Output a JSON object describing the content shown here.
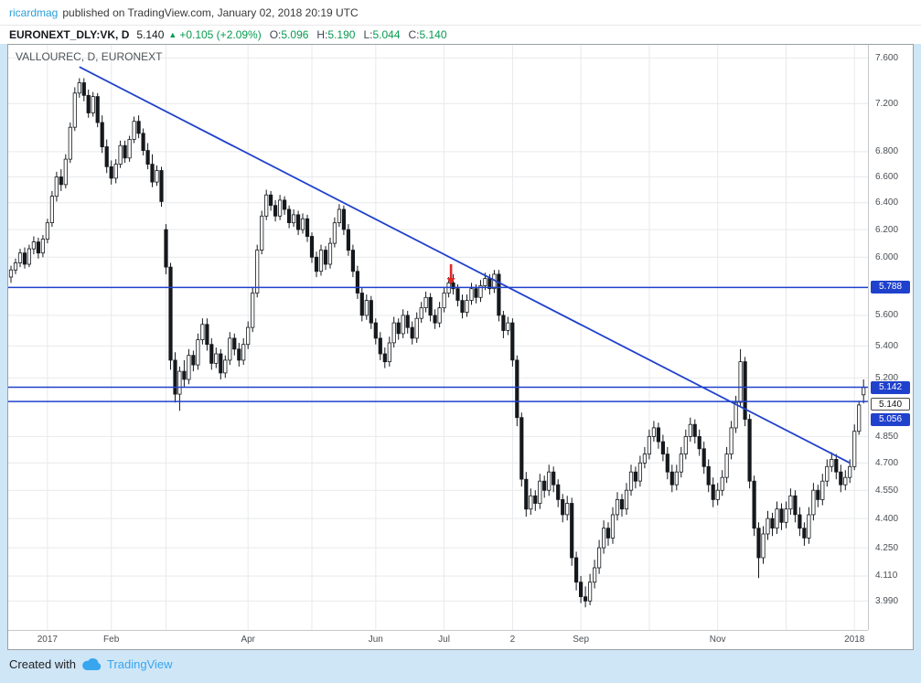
{
  "page": {
    "background": "#cfe6f7"
  },
  "header": {
    "author": "ricardmag",
    "published_text": "published on TradingView.com, January 02, 2018 20:19 UTC"
  },
  "symbol_bar": {
    "symbol": "EURONEXT_DLY:VK, D",
    "last_price": "5.140",
    "direction_icon": "▲",
    "change_text": "+0.105 (+2.09%)",
    "ohlc": [
      {
        "label": "O:",
        "value": "5.096"
      },
      {
        "label": "H:",
        "value": "5.190"
      },
      {
        "label": "L:",
        "value": "5.044"
      },
      {
        "label": "C:",
        "value": "5.140"
      }
    ]
  },
  "footer": {
    "created_with": "Created with",
    "brand": "TradingView"
  },
  "colors": {
    "drawing_blue": "#2041cc",
    "up_green": "#089950",
    "link_blue": "#2b9fd8",
    "brand_blue": "#37a6ef",
    "arrow_red": "#e12727",
    "grid": "#e7e9ec",
    "candle": "#15181c",
    "candle_up_fill": "#ffffff",
    "page_bg": "#cfe6f7"
  },
  "chart_data": {
    "type": "candlestick",
    "title": "VALLOUREC, D, EURONEXT",
    "scale": "log",
    "price_range": {
      "top": 7.72,
      "bottom": 3.855
    },
    "y_ticks": [
      7.6,
      7.2,
      6.8,
      6.6,
      6.4,
      6.2,
      6.0,
      5.6,
      5.4,
      5.2,
      4.85,
      4.7,
      4.55,
      4.4,
      4.25,
      4.11,
      3.99
    ],
    "x_labels": [
      {
        "index": 8,
        "label": "2017"
      },
      {
        "index": 22,
        "label": "Feb"
      },
      {
        "index": 52,
        "label": "Apr"
      },
      {
        "index": 80,
        "label": "Jun"
      },
      {
        "index": 95,
        "label": "Jul"
      },
      {
        "index": 110,
        "label": "2"
      },
      {
        "index": 125,
        "label": "Sep"
      },
      {
        "index": 155,
        "label": "Nov"
      },
      {
        "index": 185,
        "label": "2018"
      }
    ],
    "month_gridlines": [
      8,
      22,
      34,
      52,
      66,
      80,
      95,
      110,
      125,
      140,
      155,
      170,
      185
    ],
    "horizontal_lines": [
      {
        "price": 5.788,
        "label": "5.788"
      },
      {
        "price": 5.142,
        "label": "5.142"
      },
      {
        "price": 5.056,
        "label": "5.056"
      }
    ],
    "price_badges": [
      {
        "label": "5.788",
        "price": 5.788,
        "style": "blue",
        "offset": 0
      },
      {
        "label": "5.142",
        "price": 5.142,
        "style": "blue",
        "offset": 0
      },
      {
        "label": "5.140",
        "price": 5.14,
        "style": "white",
        "offset": 18
      },
      {
        "label": "5.056",
        "price": 5.056,
        "style": "blue",
        "offset": 20
      }
    ],
    "trendline": {
      "from": {
        "index": 15,
        "price": 7.52
      },
      "to": {
        "index": 184,
        "price": 4.7
      }
    },
    "arrow_annotation": {
      "index": 96.5,
      "from_price": 5.95,
      "to_price": 5.81,
      "color": "#e12727"
    },
    "candles": [
      [
        5.86,
        5.94,
        5.82,
        5.91
      ],
      [
        5.91,
        5.99,
        5.88,
        5.96
      ],
      [
        5.96,
        6.06,
        5.93,
        6.03
      ],
      [
        6.03,
        6.07,
        5.92,
        5.95
      ],
      [
        5.95,
        6.09,
        5.93,
        6.06
      ],
      [
        6.06,
        6.15,
        6.02,
        6.11
      ],
      [
        6.11,
        6.14,
        5.99,
        6.03
      ],
      [
        6.03,
        6.16,
        6.0,
        6.13
      ],
      [
        6.13,
        6.28,
        6.1,
        6.25
      ],
      [
        6.25,
        6.49,
        6.22,
        6.45
      ],
      [
        6.45,
        6.64,
        6.41,
        6.6
      ],
      [
        6.6,
        6.66,
        6.49,
        6.54
      ],
      [
        6.54,
        6.78,
        6.51,
        6.74
      ],
      [
        6.74,
        7.04,
        6.71,
        7.0
      ],
      [
        7.0,
        7.34,
        6.97,
        7.29
      ],
      [
        7.29,
        7.42,
        7.25,
        7.38
      ],
      [
        7.38,
        7.42,
        7.22,
        7.27
      ],
      [
        7.27,
        7.32,
        7.08,
        7.12
      ],
      [
        7.12,
        7.3,
        7.09,
        7.26
      ],
      [
        7.26,
        7.29,
        7.0,
        7.04
      ],
      [
        7.04,
        7.1,
        6.79,
        6.84
      ],
      [
        6.84,
        6.9,
        6.63,
        6.68
      ],
      [
        6.68,
        6.73,
        6.54,
        6.59
      ],
      [
        6.59,
        6.74,
        6.55,
        6.7
      ],
      [
        6.7,
        6.89,
        6.67,
        6.85
      ],
      [
        6.85,
        6.89,
        6.71,
        6.75
      ],
      [
        6.75,
        6.93,
        6.72,
        6.9
      ],
      [
        6.9,
        7.09,
        6.87,
        7.05
      ],
      [
        7.05,
        7.1,
        6.91,
        6.95
      ],
      [
        6.95,
        6.99,
        6.77,
        6.81
      ],
      [
        6.81,
        6.87,
        6.66,
        6.7
      ],
      [
        6.7,
        6.78,
        6.52,
        6.56
      ],
      [
        6.56,
        6.69,
        6.53,
        6.65
      ],
      [
        6.65,
        6.68,
        6.37,
        6.41
      ],
      [
        6.2,
        6.24,
        5.88,
        5.93
      ],
      [
        5.93,
        5.96,
        5.25,
        5.31
      ],
      [
        5.31,
        5.36,
        5.05,
        5.1
      ],
      [
        5.1,
        5.27,
        5.0,
        5.24
      ],
      [
        5.24,
        5.31,
        5.14,
        5.19
      ],
      [
        5.19,
        5.38,
        5.16,
        5.34
      ],
      [
        5.34,
        5.37,
        5.24,
        5.28
      ],
      [
        5.28,
        5.48,
        5.25,
        5.44
      ],
      [
        5.44,
        5.58,
        5.41,
        5.54
      ],
      [
        5.54,
        5.58,
        5.37,
        5.41
      ],
      [
        5.41,
        5.45,
        5.25,
        5.29
      ],
      [
        5.29,
        5.39,
        5.26,
        5.35
      ],
      [
        5.35,
        5.38,
        5.19,
        5.23
      ],
      [
        5.23,
        5.34,
        5.2,
        5.31
      ],
      [
        5.31,
        5.49,
        5.28,
        5.45
      ],
      [
        5.45,
        5.48,
        5.34,
        5.38
      ],
      [
        5.38,
        5.42,
        5.27,
        5.31
      ],
      [
        5.31,
        5.45,
        5.28,
        5.41
      ],
      [
        5.41,
        5.56,
        5.38,
        5.52
      ],
      [
        5.52,
        5.79,
        5.49,
        5.75
      ],
      [
        5.75,
        6.09,
        5.72,
        6.05
      ],
      [
        6.05,
        6.34,
        6.02,
        6.3
      ],
      [
        6.3,
        6.5,
        6.27,
        6.46
      ],
      [
        6.46,
        6.49,
        6.34,
        6.38
      ],
      [
        6.38,
        6.42,
        6.26,
        6.3
      ],
      [
        6.3,
        6.46,
        6.27,
        6.42
      ],
      [
        6.42,
        6.45,
        6.31,
        6.35
      ],
      [
        6.35,
        6.38,
        6.21,
        6.25
      ],
      [
        6.25,
        6.35,
        6.22,
        6.31
      ],
      [
        6.31,
        6.34,
        6.16,
        6.2
      ],
      [
        6.2,
        6.32,
        6.17,
        6.28
      ],
      [
        6.28,
        6.31,
        6.11,
        6.15
      ],
      [
        6.15,
        6.18,
        5.96,
        6.0
      ],
      [
        6.0,
        6.04,
        5.86,
        5.9
      ],
      [
        5.9,
        6.09,
        5.87,
        6.05
      ],
      [
        6.05,
        6.08,
        5.91,
        5.95
      ],
      [
        5.95,
        6.14,
        5.92,
        6.1
      ],
      [
        6.1,
        6.29,
        6.07,
        6.25
      ],
      [
        6.25,
        6.39,
        6.22,
        6.35
      ],
      [
        6.35,
        6.38,
        6.16,
        6.2
      ],
      [
        6.2,
        6.24,
        6.01,
        6.05
      ],
      [
        6.05,
        6.09,
        5.86,
        5.9
      ],
      [
        5.9,
        5.94,
        5.71,
        5.75
      ],
      [
        5.75,
        5.79,
        5.56,
        5.6
      ],
      [
        5.6,
        5.74,
        5.57,
        5.7
      ],
      [
        5.7,
        5.73,
        5.51,
        5.55
      ],
      [
        5.55,
        5.58,
        5.41,
        5.45
      ],
      [
        5.45,
        5.49,
        5.31,
        5.35
      ],
      [
        5.35,
        5.39,
        5.26,
        5.3
      ],
      [
        5.3,
        5.46,
        5.27,
        5.42
      ],
      [
        5.42,
        5.59,
        5.39,
        5.55
      ],
      [
        5.55,
        5.58,
        5.44,
        5.48
      ],
      [
        5.48,
        5.64,
        5.45,
        5.6
      ],
      [
        5.6,
        5.63,
        5.48,
        5.52
      ],
      [
        5.52,
        5.56,
        5.41,
        5.45
      ],
      [
        5.45,
        5.62,
        5.42,
        5.58
      ],
      [
        5.58,
        5.69,
        5.55,
        5.65
      ],
      [
        5.65,
        5.76,
        5.62,
        5.72
      ],
      [
        5.72,
        5.75,
        5.56,
        5.6
      ],
      [
        5.6,
        5.64,
        5.51,
        5.55
      ],
      [
        5.55,
        5.69,
        5.52,
        5.65
      ],
      [
        5.65,
        5.79,
        5.62,
        5.75
      ],
      [
        5.75,
        5.86,
        5.72,
        5.82
      ],
      [
        5.82,
        5.88,
        5.74,
        5.78
      ],
      [
        5.78,
        5.81,
        5.66,
        5.7
      ],
      [
        5.7,
        5.74,
        5.58,
        5.62
      ],
      [
        5.62,
        5.74,
        5.59,
        5.7
      ],
      [
        5.7,
        5.82,
        5.67,
        5.78
      ],
      [
        5.78,
        5.81,
        5.68,
        5.72
      ],
      [
        5.72,
        5.84,
        5.69,
        5.8
      ],
      [
        5.8,
        5.89,
        5.77,
        5.85
      ],
      [
        5.85,
        5.88,
        5.74,
        5.78
      ],
      [
        5.78,
        5.91,
        5.75,
        5.88
      ],
      [
        5.88,
        5.91,
        5.56,
        5.6
      ],
      [
        5.6,
        5.63,
        5.45,
        5.5
      ],
      [
        5.5,
        5.59,
        5.47,
        5.55
      ],
      [
        5.55,
        5.58,
        5.27,
        5.31
      ],
      [
        5.31,
        5.34,
        4.91,
        4.96
      ],
      [
        4.96,
        4.99,
        4.57,
        4.61
      ],
      [
        4.61,
        4.65,
        4.41,
        4.45
      ],
      [
        4.45,
        4.56,
        4.42,
        4.52
      ],
      [
        4.52,
        4.55,
        4.44,
        4.48
      ],
      [
        4.48,
        4.64,
        4.45,
        4.6
      ],
      [
        4.6,
        4.63,
        4.51,
        4.55
      ],
      [
        4.55,
        4.69,
        4.52,
        4.65
      ],
      [
        4.65,
        4.68,
        4.54,
        4.58
      ],
      [
        4.58,
        4.61,
        4.46,
        4.5
      ],
      [
        4.5,
        4.53,
        4.38,
        4.42
      ],
      [
        4.42,
        4.52,
        4.39,
        4.48
      ],
      [
        4.48,
        4.51,
        4.16,
        4.2
      ],
      [
        4.2,
        4.23,
        4.04,
        4.08
      ],
      [
        4.08,
        4.11,
        3.98,
        4.01
      ],
      [
        4.01,
        4.06,
        3.96,
        3.99
      ],
      [
        3.99,
        4.12,
        3.97,
        4.08
      ],
      [
        4.08,
        4.19,
        4.05,
        4.15
      ],
      [
        4.15,
        4.29,
        4.12,
        4.25
      ],
      [
        4.25,
        4.39,
        4.22,
        4.35
      ],
      [
        4.35,
        4.38,
        4.26,
        4.3
      ],
      [
        4.3,
        4.46,
        4.27,
        4.42
      ],
      [
        4.42,
        4.54,
        4.39,
        4.5
      ],
      [
        4.5,
        4.53,
        4.41,
        4.45
      ],
      [
        4.45,
        4.59,
        4.42,
        4.55
      ],
      [
        4.55,
        4.69,
        4.52,
        4.65
      ],
      [
        4.65,
        4.68,
        4.56,
        4.6
      ],
      [
        4.6,
        4.74,
        4.57,
        4.7
      ],
      [
        4.7,
        4.79,
        4.67,
        4.75
      ],
      [
        4.75,
        4.89,
        4.72,
        4.85
      ],
      [
        4.85,
        4.94,
        4.82,
        4.9
      ],
      [
        4.9,
        4.93,
        4.78,
        4.82
      ],
      [
        4.82,
        4.86,
        4.71,
        4.75
      ],
      [
        4.75,
        4.79,
        4.61,
        4.65
      ],
      [
        4.65,
        4.69,
        4.54,
        4.58
      ],
      [
        4.58,
        4.69,
        4.55,
        4.65
      ],
      [
        4.65,
        4.79,
        4.62,
        4.75
      ],
      [
        4.75,
        4.89,
        4.72,
        4.85
      ],
      [
        4.85,
        4.96,
        4.82,
        4.92
      ],
      [
        4.92,
        4.95,
        4.81,
        4.85
      ],
      [
        4.85,
        4.89,
        4.74,
        4.78
      ],
      [
        4.78,
        4.82,
        4.64,
        4.68
      ],
      [
        4.68,
        4.72,
        4.54,
        4.58
      ],
      [
        4.58,
        4.62,
        4.46,
        4.5
      ],
      [
        4.5,
        4.59,
        4.47,
        4.55
      ],
      [
        4.55,
        4.66,
        4.52,
        4.62
      ],
      [
        4.62,
        4.79,
        4.59,
        4.75
      ],
      [
        4.75,
        4.94,
        4.72,
        4.9
      ],
      [
        4.9,
        5.09,
        4.87,
        5.05
      ],
      [
        5.05,
        5.38,
        5.02,
        5.3
      ],
      [
        5.3,
        5.33,
        4.91,
        4.95
      ],
      [
        4.95,
        4.98,
        4.56,
        4.6
      ],
      [
        4.6,
        4.63,
        4.31,
        4.35
      ],
      [
        4.35,
        4.38,
        4.1,
        4.2
      ],
      [
        4.2,
        4.36,
        4.17,
        4.32
      ],
      [
        4.32,
        4.44,
        4.29,
        4.4
      ],
      [
        4.4,
        4.43,
        4.31,
        4.35
      ],
      [
        4.35,
        4.49,
        4.32,
        4.45
      ],
      [
        4.45,
        4.48,
        4.34,
        4.38
      ],
      [
        4.38,
        4.49,
        4.35,
        4.45
      ],
      [
        4.45,
        4.56,
        4.42,
        4.52
      ],
      [
        4.52,
        4.55,
        4.38,
        4.42
      ],
      [
        4.42,
        4.46,
        4.31,
        4.35
      ],
      [
        4.35,
        4.38,
        4.26,
        4.3
      ],
      [
        4.3,
        4.46,
        4.27,
        4.42
      ],
      [
        4.42,
        4.59,
        4.39,
        4.55
      ],
      [
        4.55,
        4.58,
        4.46,
        4.5
      ],
      [
        4.5,
        4.64,
        4.47,
        4.6
      ],
      [
        4.6,
        4.72,
        4.57,
        4.68
      ],
      [
        4.68,
        4.76,
        4.65,
        4.72
      ],
      [
        4.72,
        4.75,
        4.61,
        4.65
      ],
      [
        4.65,
        4.69,
        4.54,
        4.58
      ],
      [
        4.58,
        4.66,
        4.55,
        4.62
      ],
      [
        4.62,
        4.72,
        4.59,
        4.68
      ],
      [
        4.68,
        4.92,
        4.66,
        4.88
      ],
      [
        4.88,
        5.06,
        4.86,
        5.035
      ],
      [
        5.096,
        5.19,
        5.044,
        5.14
      ]
    ]
  }
}
